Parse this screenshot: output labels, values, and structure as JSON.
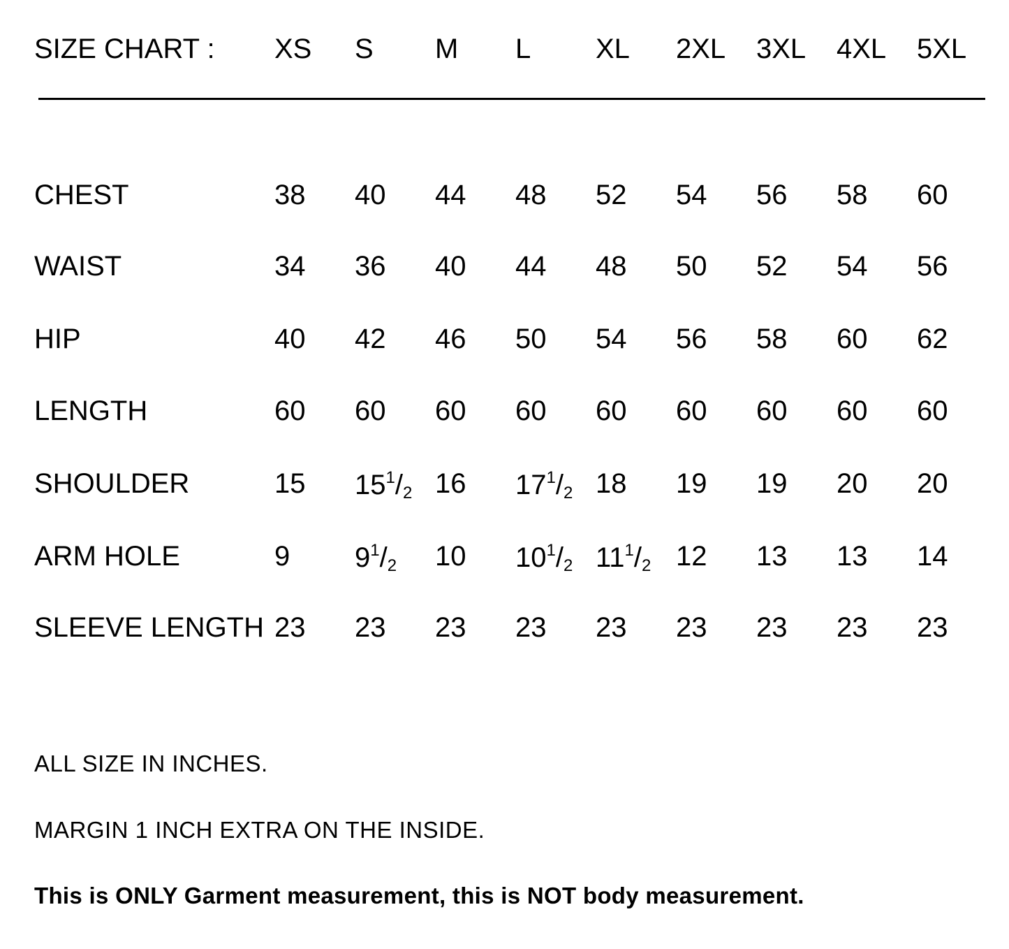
{
  "header": {
    "title": "SIZE CHART :",
    "sizes": [
      "XS",
      "S",
      "M",
      "L",
      "XL",
      "2XL",
      "3XL",
      "4XL",
      "5XL"
    ]
  },
  "rows": [
    {
      "label": "CHEST",
      "values": [
        "38",
        "40",
        "44",
        "48",
        "52",
        "54",
        "56",
        "58",
        "60"
      ]
    },
    {
      "label": "WAIST",
      "values": [
        "34",
        "36",
        "40",
        "44",
        "48",
        "50",
        "52",
        "54",
        "56"
      ]
    },
    {
      "label": "HIP",
      "values": [
        "40",
        "42",
        "46",
        "50",
        "54",
        "56",
        "58",
        "60",
        "62"
      ]
    },
    {
      "label": "LENGTH",
      "values": [
        "60",
        "60",
        "60",
        "60",
        "60",
        "60",
        "60",
        "60",
        "60"
      ]
    },
    {
      "label": "SHOULDER",
      "values": [
        "15",
        "15 1/2",
        "16",
        "17 1/2",
        "18",
        "19",
        "19",
        "20",
        "20"
      ]
    },
    {
      "label": "ARM HOLE",
      "values": [
        "9",
        "9 1/2",
        "10",
        "10 1/2",
        "11 1/2",
        "12",
        "13",
        "13",
        "14"
      ]
    },
    {
      "label": "SLEEVE LENGTH",
      "values": [
        "23",
        "23",
        "23",
        "23",
        "23",
        "23",
        "23",
        "23",
        "23"
      ]
    }
  ],
  "notes": {
    "units": "ALL SIZE IN INCHES.",
    "margin": "MARGIN 1 INCH EXTRA ON THE INSIDE.",
    "disclaimer": "This is ONLY Garment measurement, this is NOT body measurement."
  }
}
